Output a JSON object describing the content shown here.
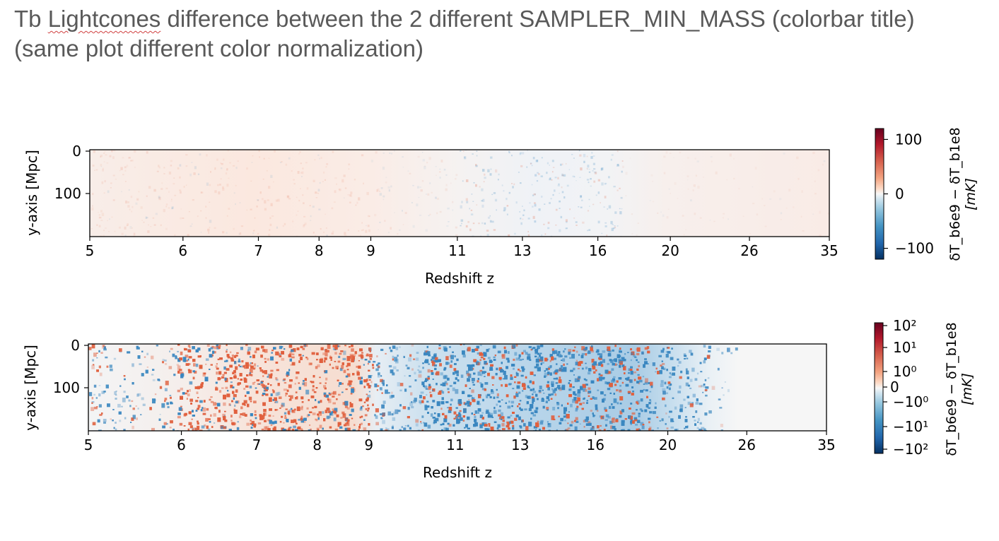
{
  "slide": {
    "title_prefix": "Tb ",
    "title_underlined": "Lightcones",
    "title_rest": " difference between the 2 different SAMPLER_MIN_MASS (colorbar title)",
    "subtitle": "(same plot different color normalization)"
  },
  "colors": {
    "cmap_low": "#053061",
    "cmap_mid": "#f7f7f7",
    "cmap_high": "#67001f",
    "red": "#e0603e",
    "blue": "#3a87c0",
    "title_text": "#595959"
  },
  "chart_data": [
    {
      "type": "heatmap",
      "panel": "top",
      "norm": "linear",
      "xlabel": "Redshift z",
      "ylabel": "y-axis [Mpc]",
      "x_ticks": [
        "5",
        "6",
        "7",
        "8",
        "9",
        "11",
        "13",
        "16",
        "20",
        "26",
        "35"
      ],
      "y_ticks": [
        "0",
        "100"
      ],
      "colorbar": {
        "label_line1": "δT_b6e9 − δT_b1e8",
        "label_line2": "[mK]",
        "range": [
          -120,
          120
        ],
        "tick_values": [
          100,
          0,
          -100
        ],
        "tick_labels": [
          "100",
          "0",
          "−100"
        ]
      },
      "description": "Near-zero differences everywhere; faint positive tint over z≈5–11 and z≈20–35, faint blue speckles around z≈11–16."
    },
    {
      "type": "heatmap",
      "panel": "bottom",
      "norm": "symlog",
      "xlabel": "Redshift z",
      "ylabel": "y-axis [Mpc]",
      "x_ticks": [
        "5",
        "6",
        "7",
        "8",
        "9",
        "11",
        "13",
        "16",
        "20",
        "26",
        "35"
      ],
      "y_ticks": [
        "0",
        "100"
      ],
      "colorbar": {
        "label_line1": "δT_b6e9 − δT_b1e8",
        "label_line2": "[mK]",
        "range": [
          -100,
          100
        ],
        "tick_labels": [
          "10²",
          "10¹",
          "10⁰",
          "0",
          "−10⁰",
          "−10¹",
          "−10²"
        ]
      },
      "description": "Mixed red/blue speckle; predominantly positive (red) at z≈6–9, predominantly negative (blue) at z≈10–19, near zero beyond z≈22."
    }
  ]
}
